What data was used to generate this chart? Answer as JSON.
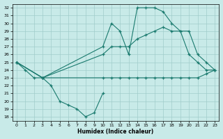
{
  "xlabel": "Humidex (Indice chaleur)",
  "bg_color": "#c8eae8",
  "line_color": "#1a7a6e",
  "grid_color": "#a0ccca",
  "xlim": [
    -0.5,
    23.5
  ],
  "ylim": [
    17.5,
    32.5
  ],
  "xticks": [
    0,
    1,
    2,
    3,
    4,
    5,
    6,
    7,
    8,
    9,
    10,
    11,
    12,
    13,
    14,
    15,
    16,
    17,
    18,
    19,
    20,
    21,
    22,
    23
  ],
  "yticks": [
    18,
    19,
    20,
    21,
    22,
    23,
    24,
    25,
    26,
    27,
    28,
    29,
    30,
    31,
    32
  ],
  "series": [
    {
      "x": [
        0,
        1,
        2,
        3,
        4,
        5,
        6,
        7,
        8,
        9,
        10
      ],
      "y": [
        25,
        24,
        23,
        23,
        22,
        20,
        19.5,
        19,
        18,
        18.5,
        21
      ]
    },
    {
      "x": [
        0,
        3,
        10,
        11,
        12,
        13,
        14,
        15,
        16,
        17,
        18,
        19,
        20,
        21,
        22,
        23
      ],
      "y": [
        25,
        23,
        23,
        23,
        23,
        23,
        23,
        23,
        23,
        23,
        23,
        23,
        23,
        23,
        23.5,
        24
      ]
    },
    {
      "x": [
        0,
        3,
        10,
        11,
        12,
        13,
        14,
        15,
        16,
        17,
        18,
        19,
        20,
        21,
        22,
        23
      ],
      "y": [
        25,
        23,
        27,
        30,
        29,
        26,
        32,
        32,
        32,
        31.5,
        30,
        29,
        26,
        25,
        24,
        24
      ]
    },
    {
      "x": [
        0,
        3,
        10,
        11,
        12,
        13,
        14,
        15,
        16,
        17,
        18,
        19,
        20,
        21,
        22,
        23
      ],
      "y": [
        25,
        23,
        26,
        27,
        27,
        27,
        28,
        28.5,
        29,
        29.5,
        29,
        29,
        29,
        26,
        25,
        24
      ]
    }
  ]
}
